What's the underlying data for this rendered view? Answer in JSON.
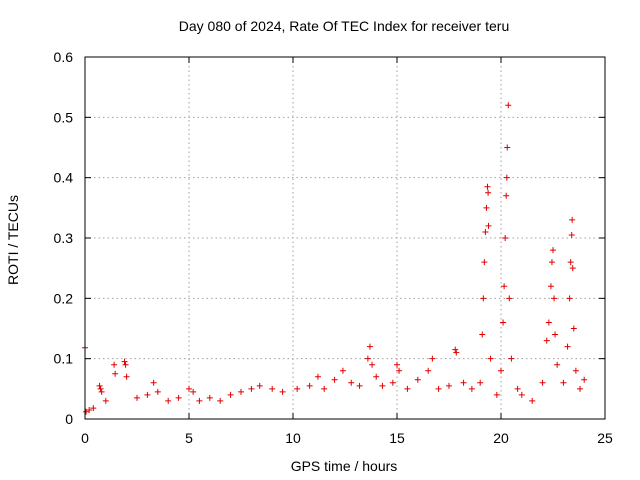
{
  "chart_data": {
    "type": "scatter",
    "title": "Day 080 of 2024, Rate Of TEC Index for receiver teru",
    "xlabel": "GPS time / hours",
    "ylabel": "ROTI / TECUs",
    "xlim": [
      0,
      25
    ],
    "ylim": [
      0,
      0.6
    ],
    "x_ticks": [
      "0",
      "5",
      "10",
      "15",
      "20",
      "25"
    ],
    "y_ticks": [
      "0",
      "0.1",
      "0.2",
      "0.3",
      "0.4",
      "0.5",
      "0.6"
    ],
    "grid": true,
    "marker": "+",
    "series": [
      {
        "color": "#e00000",
        "points": [
          [
            0.0,
            0.118
          ],
          [
            0.05,
            0.012
          ],
          [
            0.2,
            0.015
          ],
          [
            0.4,
            0.018
          ],
          [
            0.7,
            0.055
          ],
          [
            0.75,
            0.05
          ],
          [
            0.8,
            0.045
          ],
          [
            1.0,
            0.03
          ],
          [
            1.4,
            0.09
          ],
          [
            1.45,
            0.075
          ],
          [
            1.9,
            0.095
          ],
          [
            1.95,
            0.09
          ],
          [
            2.0,
            0.07
          ],
          [
            2.5,
            0.035
          ],
          [
            3.0,
            0.04
          ],
          [
            3.3,
            0.06
          ],
          [
            3.5,
            0.045
          ],
          [
            4.0,
            0.03
          ],
          [
            4.5,
            0.035
          ],
          [
            5.0,
            0.05
          ],
          [
            5.2,
            0.045
          ],
          [
            5.5,
            0.03
          ],
          [
            6.0,
            0.035
          ],
          [
            6.5,
            0.03
          ],
          [
            7.0,
            0.04
          ],
          [
            7.5,
            0.045
          ],
          [
            8.0,
            0.05
          ],
          [
            8.4,
            0.055
          ],
          [
            9.0,
            0.05
          ],
          [
            9.5,
            0.045
          ],
          [
            10.2,
            0.05
          ],
          [
            10.8,
            0.055
          ],
          [
            11.2,
            0.07
          ],
          [
            11.5,
            0.05
          ],
          [
            12.0,
            0.065
          ],
          [
            12.4,
            0.08
          ],
          [
            12.8,
            0.06
          ],
          [
            13.2,
            0.055
          ],
          [
            13.6,
            0.1
          ],
          [
            13.7,
            0.12
          ],
          [
            13.8,
            0.09
          ],
          [
            14.0,
            0.07
          ],
          [
            14.3,
            0.055
          ],
          [
            14.8,
            0.06
          ],
          [
            15.0,
            0.09
          ],
          [
            15.1,
            0.08
          ],
          [
            15.5,
            0.05
          ],
          [
            16.0,
            0.065
          ],
          [
            16.5,
            0.08
          ],
          [
            16.7,
            0.1
          ],
          [
            17.0,
            0.05
          ],
          [
            17.5,
            0.055
          ],
          [
            17.8,
            0.115
          ],
          [
            17.85,
            0.11
          ],
          [
            18.2,
            0.06
          ],
          [
            18.6,
            0.05
          ],
          [
            19.0,
            0.06
          ],
          [
            19.1,
            0.14
          ],
          [
            19.15,
            0.2
          ],
          [
            19.2,
            0.26
          ],
          [
            19.25,
            0.31
          ],
          [
            19.3,
            0.35
          ],
          [
            19.35,
            0.385
          ],
          [
            19.38,
            0.375
          ],
          [
            19.4,
            0.32
          ],
          [
            19.5,
            0.1
          ],
          [
            19.8,
            0.04
          ],
          [
            20.0,
            0.08
          ],
          [
            20.1,
            0.16
          ],
          [
            20.15,
            0.22
          ],
          [
            20.2,
            0.3
          ],
          [
            20.25,
            0.37
          ],
          [
            20.28,
            0.4
          ],
          [
            20.3,
            0.45
          ],
          [
            20.35,
            0.52
          ],
          [
            20.4,
            0.2
          ],
          [
            20.5,
            0.1
          ],
          [
            20.8,
            0.05
          ],
          [
            21.0,
            0.04
          ],
          [
            21.5,
            0.03
          ],
          [
            22.0,
            0.06
          ],
          [
            22.2,
            0.13
          ],
          [
            22.3,
            0.16
          ],
          [
            22.4,
            0.22
          ],
          [
            22.45,
            0.26
          ],
          [
            22.5,
            0.28
          ],
          [
            22.55,
            0.2
          ],
          [
            22.6,
            0.14
          ],
          [
            22.7,
            0.09
          ],
          [
            23.0,
            0.06
          ],
          [
            23.2,
            0.12
          ],
          [
            23.3,
            0.2
          ],
          [
            23.35,
            0.26
          ],
          [
            23.4,
            0.305
          ],
          [
            23.42,
            0.33
          ],
          [
            23.45,
            0.25
          ],
          [
            23.5,
            0.15
          ],
          [
            23.6,
            0.08
          ],
          [
            23.8,
            0.05
          ],
          [
            24.0,
            0.065
          ]
        ]
      }
    ]
  }
}
